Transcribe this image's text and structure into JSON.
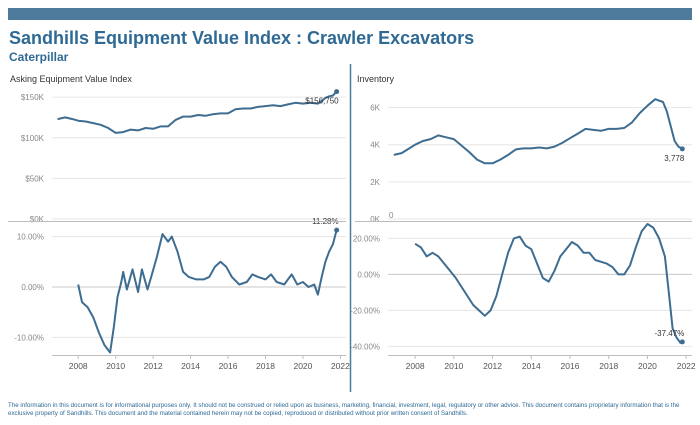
{
  "header": {
    "title": "Sandhills Equipment Value Index : Crawler Excavators",
    "subtitle": "Caterpillar"
  },
  "footer": {
    "text": "The information in this document is for informational purposes only.  It should not be construed or relied upon as business, marketing, financial, investment, legal, regulatory or other advice. This document contains proprietary information that is the exclusive property of Sandhills. This document and the material contained herein may not be copied, reproduced or distributed without prior written consent of Sandhills."
  },
  "colors": {
    "line": "#3e6d91",
    "accent": "#2f6a95",
    "grid": "#e6e6e6"
  },
  "chart_data": [
    {
      "id": "avi",
      "type": "line",
      "title": "Asking Equipment Value Index",
      "ylim": [
        0,
        160000
      ],
      "yticks": [
        0,
        50000,
        100000,
        150000
      ],
      "ytick_labels": [
        "$0K",
        "$50K",
        "$100K",
        "$150K"
      ],
      "end_label": "$156,750",
      "x": [
        2006.9,
        2007.3,
        2007.7,
        2008.0,
        2008.4,
        2008.8,
        2009.2,
        2009.6,
        2010.0,
        2010.4,
        2010.8,
        2011.2,
        2011.6,
        2012.0,
        2012.4,
        2012.8,
        2013.2,
        2013.6,
        2014.0,
        2014.4,
        2014.8,
        2015.2,
        2015.6,
        2016.0,
        2016.4,
        2016.8,
        2017.2,
        2017.6,
        2018.0,
        2018.4,
        2018.8,
        2019.2,
        2019.6,
        2020.0,
        2020.4,
        2020.8,
        2021.0,
        2021.2,
        2021.4,
        2021.6,
        2021.8
      ],
      "values": [
        123000,
        125000,
        123000,
        121000,
        120000,
        118000,
        116000,
        112000,
        106000,
        107000,
        110000,
        109000,
        112000,
        111000,
        114000,
        114000,
        122000,
        126000,
        126000,
        128000,
        127000,
        129000,
        130000,
        130000,
        135000,
        136000,
        136000,
        138000,
        139000,
        140000,
        139000,
        141000,
        143000,
        142000,
        143000,
        142000,
        145000,
        149000,
        151000,
        152000,
        156750
      ]
    },
    {
      "id": "inv",
      "type": "line",
      "title": "Inventory",
      "ylim": [
        0,
        7000
      ],
      "yticks": [
        0,
        2000,
        4000,
        6000
      ],
      "ytick_labels": [
        "0K",
        "2K",
        "4K",
        "6K"
      ],
      "end_label": "3,778",
      "corner_label": "0",
      "x": [
        2006.9,
        2007.3,
        2007.7,
        2008.0,
        2008.4,
        2008.8,
        2009.2,
        2009.6,
        2010.0,
        2010.4,
        2010.8,
        2011.2,
        2011.6,
        2012.0,
        2012.4,
        2012.8,
        2013.2,
        2013.6,
        2014.0,
        2014.4,
        2014.8,
        2015.2,
        2015.6,
        2016.0,
        2016.4,
        2016.8,
        2017.2,
        2017.6,
        2018.0,
        2018.4,
        2018.8,
        2019.2,
        2019.6,
        2020.0,
        2020.4,
        2020.8,
        2021.0,
        2021.2,
        2021.4,
        2021.6,
        2021.8
      ],
      "values": [
        3450,
        3550,
        3800,
        4000,
        4200,
        4300,
        4500,
        4400,
        4300,
        3950,
        3600,
        3200,
        3000,
        3000,
        3200,
        3450,
        3750,
        3800,
        3800,
        3850,
        3800,
        3900,
        4100,
        4350,
        4600,
        4850,
        4800,
        4750,
        4850,
        4850,
        4900,
        5200,
        5700,
        6100,
        6450,
        6300,
        5800,
        5000,
        4200,
        3900,
        3778
      ]
    },
    {
      "id": "avi_yoy",
      "type": "line",
      "ylim": [
        -12.5,
        12.5
      ],
      "yticks": [
        -10,
        0,
        10
      ],
      "ytick_labels": [
        "-10.00%",
        "0.00%",
        "10.00%"
      ],
      "end_label": "11.28%",
      "x": [
        2008.0,
        2008.2,
        2008.5,
        2008.8,
        2009.1,
        2009.4,
        2009.7,
        2009.9,
        2010.1,
        2010.3,
        2010.4,
        2010.6,
        2010.9,
        2011.2,
        2011.4,
        2011.7,
        2011.9,
        2012.2,
        2012.5,
        2012.8,
        2013.0,
        2013.3,
        2013.6,
        2013.9,
        2014.3,
        2014.7,
        2015.0,
        2015.3,
        2015.6,
        2015.9,
        2016.2,
        2016.6,
        2017.0,
        2017.3,
        2017.6,
        2018.0,
        2018.3,
        2018.6,
        2019.0,
        2019.4,
        2019.7,
        2020.0,
        2020.3,
        2020.6,
        2020.8,
        2021.0,
        2021.2,
        2021.4,
        2021.6,
        2021.8
      ],
      "values": [
        0.5,
        -3.0,
        -4.0,
        -6.0,
        -9.0,
        -11.5,
        -13.0,
        -8.0,
        -2.0,
        1.0,
        3.0,
        -0.5,
        3.5,
        -1.0,
        3.5,
        -0.5,
        2.0,
        6.0,
        10.5,
        9.0,
        10.0,
        7.0,
        3.0,
        2.0,
        1.5,
        1.5,
        2.0,
        4.0,
        5.0,
        4.0,
        2.0,
        0.5,
        1.0,
        2.5,
        2.0,
        1.5,
        2.5,
        1.0,
        0.5,
        2.5,
        0.5,
        1.0,
        0.0,
        0.5,
        -1.5,
        2.0,
        5.0,
        7.0,
        8.5,
        11.28
      ]
    },
    {
      "id": "inv_yoy",
      "type": "line",
      "ylim": [
        -42,
        28
      ],
      "yticks": [
        -40,
        -20,
        0,
        20
      ],
      "ytick_labels": [
        "-40.00%",
        "-20.00%",
        "0.00%",
        "20.00%"
      ],
      "end_label": "-37.47%",
      "x": [
        2008.0,
        2008.3,
        2008.6,
        2008.9,
        2009.2,
        2009.5,
        2009.8,
        2010.1,
        2010.4,
        2010.7,
        2011.0,
        2011.3,
        2011.6,
        2011.9,
        2012.2,
        2012.5,
        2012.8,
        2013.1,
        2013.4,
        2013.7,
        2014.0,
        2014.3,
        2014.6,
        2014.9,
        2015.2,
        2015.5,
        2015.8,
        2016.1,
        2016.4,
        2016.7,
        2017.0,
        2017.3,
        2017.6,
        2017.9,
        2018.2,
        2018.5,
        2018.8,
        2019.1,
        2019.4,
        2019.7,
        2020.0,
        2020.3,
        2020.6,
        2020.9,
        2021.1,
        2021.3,
        2021.5,
        2021.7,
        2021.8
      ],
      "values": [
        17.0,
        15.0,
        10.0,
        12.0,
        10.0,
        6.0,
        2.0,
        -2.0,
        -7.0,
        -12.0,
        -17.0,
        -20.0,
        -23.0,
        -20.0,
        -12.0,
        0.0,
        12.0,
        20.0,
        21.0,
        16.0,
        14.0,
        6.0,
        -2.0,
        -4.0,
        2.0,
        10.0,
        14.0,
        18.0,
        16.0,
        12.0,
        12.0,
        8.0,
        7.0,
        6.0,
        4.0,
        0.0,
        0.0,
        5.0,
        15.0,
        24.0,
        28.0,
        26.0,
        20.0,
        10.0,
        -10.0,
        -30.0,
        -35.0,
        -38.0,
        -37.47
      ]
    }
  ],
  "xaxis": {
    "ticks": [
      2008,
      2010,
      2012,
      2014,
      2016,
      2018,
      2020,
      2022
    ],
    "range": [
      2006.6,
      2022.3
    ]
  }
}
